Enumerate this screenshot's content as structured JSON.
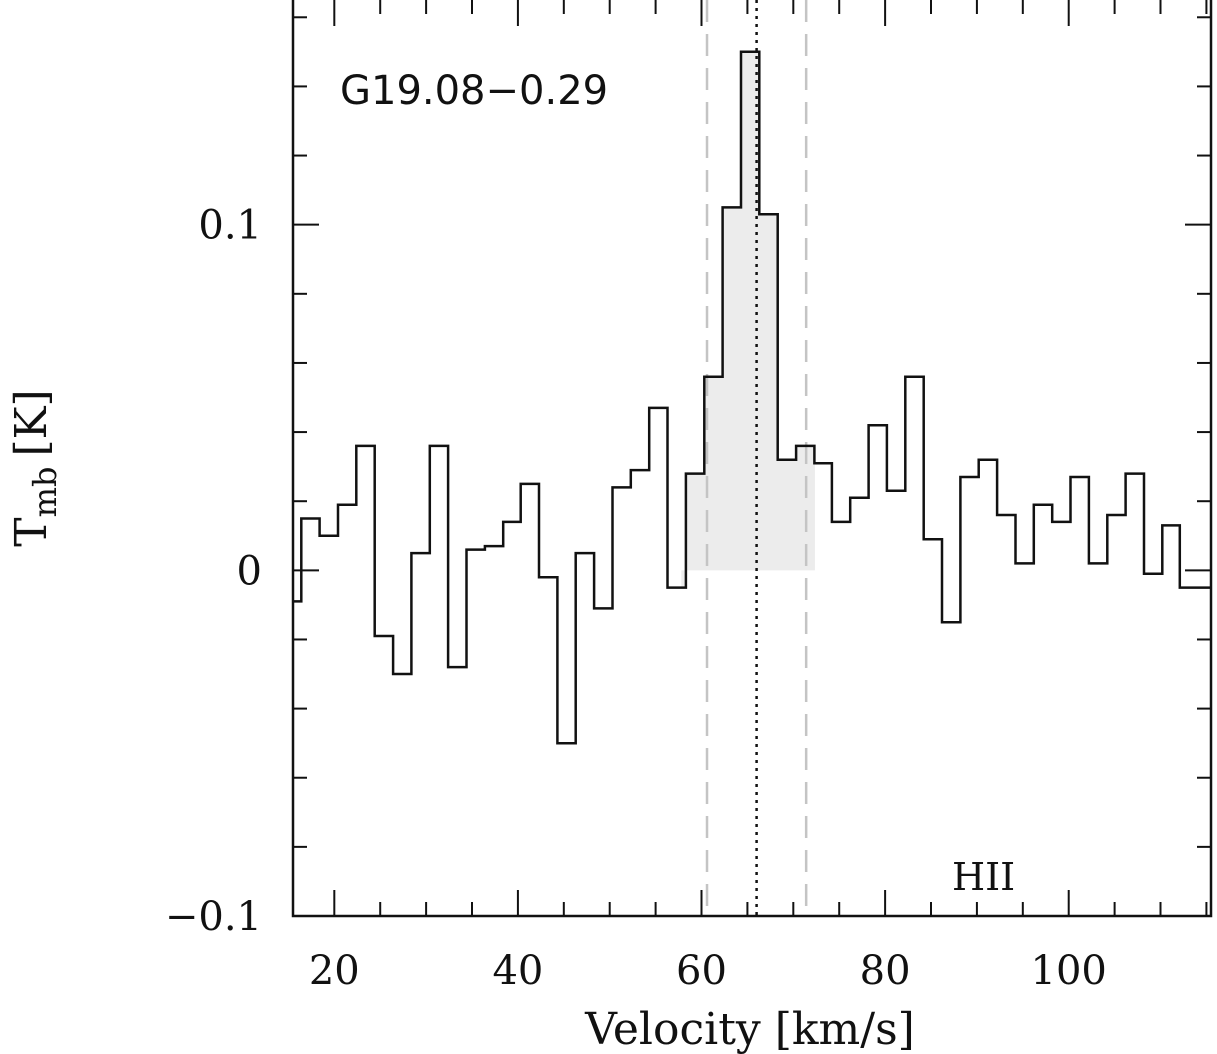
{
  "chart_data": {
    "type": "line",
    "style": "step histogram",
    "source_label": "G19.08−0.29",
    "corner_label": "HII",
    "xlabel": "Velocity [km/s]",
    "ylabel_main": "T",
    "ylabel_sub": "mb",
    "ylabel_unit": "[K]",
    "xlim": [
      15.5,
      115.5
    ],
    "ylim": [
      -0.1,
      0.165
    ],
    "x_ticks": [
      20,
      40,
      60,
      80,
      100
    ],
    "x_tick_labels": [
      "20",
      "40",
      "60",
      "80",
      "100"
    ],
    "y_ticks": [
      -0.1,
      0,
      0.1
    ],
    "y_tick_labels": [
      "−0.1",
      "0",
      "0.1"
    ],
    "vlines": {
      "dashed": [
        60.6,
        71.4
      ],
      "dotted": [
        66.0
      ]
    },
    "shaded_range": [
      57.8,
      72.3
    ],
    "colors": {
      "line": "#111111",
      "fill": "#ececec",
      "dashed": "#c4c4c4"
    },
    "bin_edges": [
      15.5,
      16.4,
      18.4,
      20.4,
      22.4,
      24.4,
      26.4,
      28.4,
      30.4,
      32.4,
      34.4,
      36.4,
      38.4,
      40.3,
      42.3,
      44.3,
      46.3,
      48.3,
      50.3,
      52.3,
      54.3,
      56.3,
      58.3,
      60.3,
      62.3,
      64.3,
      66.3,
      68.3,
      70.3,
      72.3,
      74.2,
      76.2,
      78.2,
      80.2,
      82.2,
      84.2,
      86.2,
      88.2,
      90.2,
      92.2,
      94.2,
      96.2,
      98.2,
      100.2,
      102.2,
      104.2,
      106.2,
      108.2,
      110.2,
      112.1,
      114.1,
      115.5
    ],
    "values": [
      -0.009,
      0.015,
      0.01,
      0.019,
      0.036,
      -0.019,
      -0.03,
      0.005,
      0.036,
      -0.028,
      0.006,
      0.007,
      0.014,
      0.025,
      -0.002,
      -0.05,
      0.005,
      -0.011,
      0.024,
      0.029,
      0.047,
      -0.005,
      0.028,
      0.056,
      0.105,
      0.15,
      0.103,
      0.032,
      0.036,
      0.031,
      0.014,
      0.021,
      0.042,
      0.023,
      0.056,
      0.009,
      -0.015,
      0.027,
      0.032,
      0.016,
      0.002,
      0.019,
      0.014,
      0.027,
      0.002,
      0.016,
      0.028,
      -0.001,
      0.013,
      -0.005,
      -0.005
    ]
  }
}
